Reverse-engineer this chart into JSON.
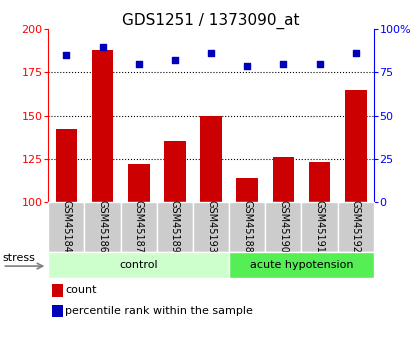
{
  "title": "GDS1251 / 1373090_at",
  "samples": [
    "GSM45184",
    "GSM45186",
    "GSM45187",
    "GSM45189",
    "GSM45193",
    "GSM45188",
    "GSM45190",
    "GSM45191",
    "GSM45192"
  ],
  "count_values": [
    142,
    188,
    122,
    135,
    150,
    114,
    126,
    123,
    165
  ],
  "percentile_values": [
    85,
    90,
    80,
    82,
    86,
    79,
    80,
    80,
    86
  ],
  "groups": [
    {
      "label": "control",
      "start": 0,
      "end": 5,
      "color": "#ccffcc"
    },
    {
      "label": "acute hypotension",
      "start": 5,
      "end": 9,
      "color": "#55ee55"
    }
  ],
  "ylim_left": [
    100,
    200
  ],
  "ylim_right": [
    0,
    100
  ],
  "yticks_left": [
    100,
    125,
    150,
    175,
    200
  ],
  "yticks_right": [
    0,
    25,
    50,
    75,
    100
  ],
  "bar_color": "#cc0000",
  "dot_color": "#0000bb",
  "grid_color": "#000000",
  "bar_width": 0.6,
  "stress_label": "stress",
  "legend_count_label": "count",
  "legend_pct_label": "percentile rank within the sample",
  "xlabel_area_color": "#cccccc",
  "title_fontsize": 11,
  "tick_fontsize": 8,
  "label_fontsize": 8,
  "sample_fontsize": 7,
  "group_fontsize": 8
}
